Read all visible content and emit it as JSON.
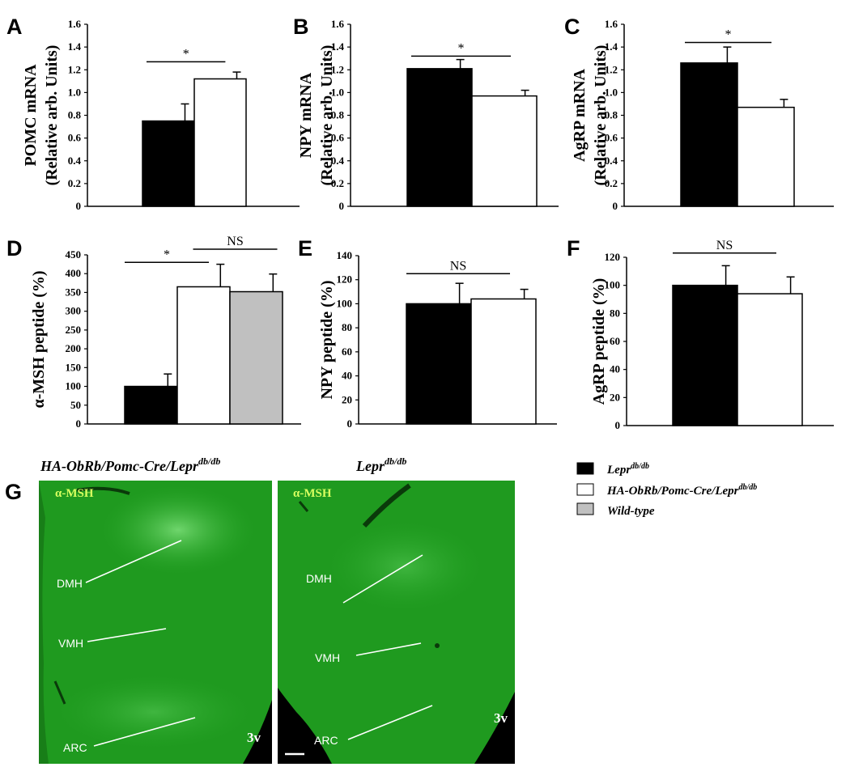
{
  "chart_data": [
    {
      "panel": "A",
      "type": "bar",
      "ylabel": [
        "POMC mRNA",
        "(Relative arb. Units)"
      ],
      "ylim": [
        0,
        1.6
      ],
      "ticks": [
        "0",
        "0.2",
        "0.4",
        "0.6",
        "0.8",
        "1.0",
        "1.2",
        "1.4",
        "1.6"
      ],
      "series": [
        {
          "name": "Lepr db/db",
          "value": 0.75,
          "error": 0.15,
          "color": "#000000"
        },
        {
          "name": "HA-ObRb/Pomc-Cre/Lepr db/db",
          "value": 1.12,
          "error": 0.06,
          "color": "#ffffff"
        }
      ],
      "annotations": [
        {
          "text": "*",
          "from": 0,
          "to": 1,
          "y": 1.27
        }
      ]
    },
    {
      "panel": "B",
      "type": "bar",
      "ylabel": [
        "NPY mRNA",
        "(Relative arb. Units)"
      ],
      "ylim": [
        0,
        1.6
      ],
      "ticks": [
        "0",
        "0.2",
        "0.4",
        "0.6",
        "0.8",
        "1.0",
        "1.2",
        "1.4",
        "1.6"
      ],
      "series": [
        {
          "name": "Lepr db/db",
          "value": 1.21,
          "error": 0.08,
          "color": "#000000"
        },
        {
          "name": "HA-ObRb/Pomc-Cre/Lepr db/db",
          "value": 0.97,
          "error": 0.05,
          "color": "#ffffff"
        }
      ],
      "annotations": [
        {
          "text": "*",
          "from": 0,
          "to": 1,
          "y": 1.32
        }
      ]
    },
    {
      "panel": "C",
      "type": "bar",
      "ylabel": [
        "AgRP mRNA",
        "(Relative arb. Units)"
      ],
      "ylim": [
        0,
        1.6
      ],
      "ticks": [
        "0",
        "0.2",
        "0.4",
        "0.6",
        "0.8",
        "1.0",
        "1.2",
        "1.4",
        "1.6"
      ],
      "series": [
        {
          "name": "Lepr db/db",
          "value": 1.26,
          "error": 0.14,
          "color": "#000000"
        },
        {
          "name": "HA-ObRb/Pomc-Cre/Lepr db/db",
          "value": 0.87,
          "error": 0.07,
          "color": "#ffffff"
        }
      ],
      "annotations": [
        {
          "text": "*",
          "from": 0,
          "to": 1,
          "y": 1.44
        }
      ]
    },
    {
      "panel": "D",
      "type": "bar",
      "ylabel": [
        "α-MSH peptide (%)"
      ],
      "ylim": [
        0,
        450
      ],
      "ticks": [
        "0",
        "50",
        "100",
        "150",
        "200",
        "250",
        "300",
        "350",
        "400",
        "450"
      ],
      "series": [
        {
          "name": "Lepr db/db",
          "value": 100,
          "error": 33,
          "color": "#000000"
        },
        {
          "name": "HA-ObRb/Pomc-Cre/Lepr db/db",
          "value": 365,
          "error": 60,
          "color": "#ffffff"
        },
        {
          "name": "Wild-type",
          "value": 352,
          "error": 47,
          "color": "#c0c0c0"
        }
      ],
      "annotations": [
        {
          "text": "*",
          "from": 0,
          "to": 1,
          "y": 430
        },
        {
          "text": "NS",
          "from": 1,
          "to": 2,
          "y": 465
        }
      ]
    },
    {
      "panel": "E",
      "type": "bar",
      "ylabel": [
        "NPY peptide (%)"
      ],
      "ylim": [
        0,
        140
      ],
      "ticks": [
        "0",
        "20",
        "40",
        "60",
        "80",
        "100",
        "120",
        "140"
      ],
      "series": [
        {
          "name": "Lepr db/db",
          "value": 100,
          "error": 17,
          "color": "#000000"
        },
        {
          "name": "HA-ObRb/Pomc-Cre/Lepr db/db",
          "value": 104,
          "error": 8,
          "color": "#ffffff"
        }
      ],
      "annotations": [
        {
          "text": "NS",
          "from": 0,
          "to": 1,
          "y": 125
        }
      ]
    },
    {
      "panel": "F",
      "type": "bar",
      "ylabel": [
        "AgRP peptide (%)"
      ],
      "ylim": [
        0,
        120
      ],
      "ticks": [
        "0",
        "20",
        "40",
        "60",
        "80",
        "100",
        "120"
      ],
      "series": [
        {
          "name": "Lepr db/db",
          "value": 100,
          "error": 14,
          "color": "#000000"
        },
        {
          "name": "HA-ObRb/Pomc-Cre/Lepr db/db",
          "value": 94,
          "error": 12,
          "color": "#ffffff"
        }
      ],
      "annotations": [
        {
          "text": "NS",
          "from": 0,
          "to": 1,
          "y": 123
        }
      ]
    }
  ],
  "legend": [
    {
      "base": "Lepr",
      "sup": "db/db",
      "color": "#000000"
    },
    {
      "base": "HA-ObRb/Pomc-Cre/Lepr",
      "sup": "db/db",
      "color": "#ffffff"
    },
    {
      "base": "Wild-type",
      "sup": "",
      "color": "#c0c0c0"
    }
  ],
  "panel_g": {
    "label": "G",
    "images": [
      {
        "title_base": "HA-ObRb/Pomc-Cre/Lepr",
        "title_sup": "db/db",
        "stain": "α-MSH",
        "regions": [
          "DMH",
          "VMH",
          "ARC"
        ],
        "ventricle": "3v"
      },
      {
        "title_base": "Lepr",
        "title_sup": "db/db",
        "stain": "α-MSH",
        "regions": [
          "DMH",
          "VMH",
          "ARC"
        ],
        "ventricle": "3v"
      }
    ]
  },
  "colors": {
    "tissue": "#1f9a1f",
    "background": "#000000",
    "stain_label": "#d8ff60"
  }
}
